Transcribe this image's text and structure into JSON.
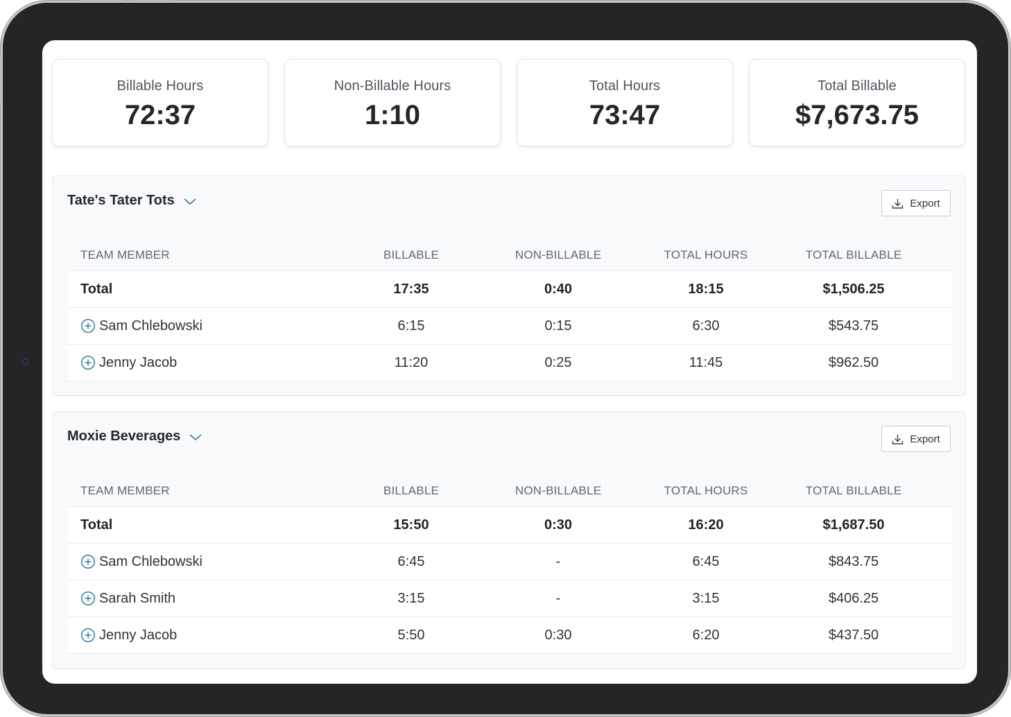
{
  "summary": [
    {
      "label": "Billable Hours",
      "value": "72:37"
    },
    {
      "label": "Non-Billable Hours",
      "value": "1:10"
    },
    {
      "label": "Total Hours",
      "value": "73:47"
    },
    {
      "label": "Total Billable",
      "value": "$7,673.75"
    }
  ],
  "columns": {
    "member": "Team Member",
    "billable": "Billable",
    "non_billable": "Non-Billable",
    "total_hours": "Total Hours",
    "total_billable": "Total Billable"
  },
  "export_label": "Export",
  "clients": [
    {
      "name": "Tate's Tater Tots",
      "total": {
        "label": "Total",
        "billable": "17:35",
        "non_billable": "0:40",
        "total_hours": "18:15",
        "total_billable": "$1,506.25"
      },
      "members": [
        {
          "name": "Sam Chlebowski",
          "billable": "6:15",
          "non_billable": "0:15",
          "total_hours": "6:30",
          "total_billable": "$543.75"
        },
        {
          "name": "Jenny Jacob",
          "billable": "11:20",
          "non_billable": "0:25",
          "total_hours": "11:45",
          "total_billable": "$962.50"
        }
      ]
    },
    {
      "name": "Moxie Beverages",
      "total": {
        "label": "Total",
        "billable": "15:50",
        "non_billable": "0:30",
        "total_hours": "16:20",
        "total_billable": "$1,687.50"
      },
      "members": [
        {
          "name": "Sam Chlebowski",
          "billable": "6:45",
          "non_billable": "-",
          "total_hours": "6:45",
          "total_billable": "$843.75"
        },
        {
          "name": "Sarah Smith",
          "billable": "3:15",
          "non_billable": "-",
          "total_hours": "3:15",
          "total_billable": "$406.25"
        },
        {
          "name": "Jenny Jacob",
          "billable": "5:50",
          "non_billable": "0:30",
          "total_hours": "6:20",
          "total_billable": "$437.50"
        }
      ]
    }
  ],
  "colors": {
    "accent": "#2f7fa3",
    "frame": "#252525",
    "panel_bg": "#f7f9fb"
  }
}
